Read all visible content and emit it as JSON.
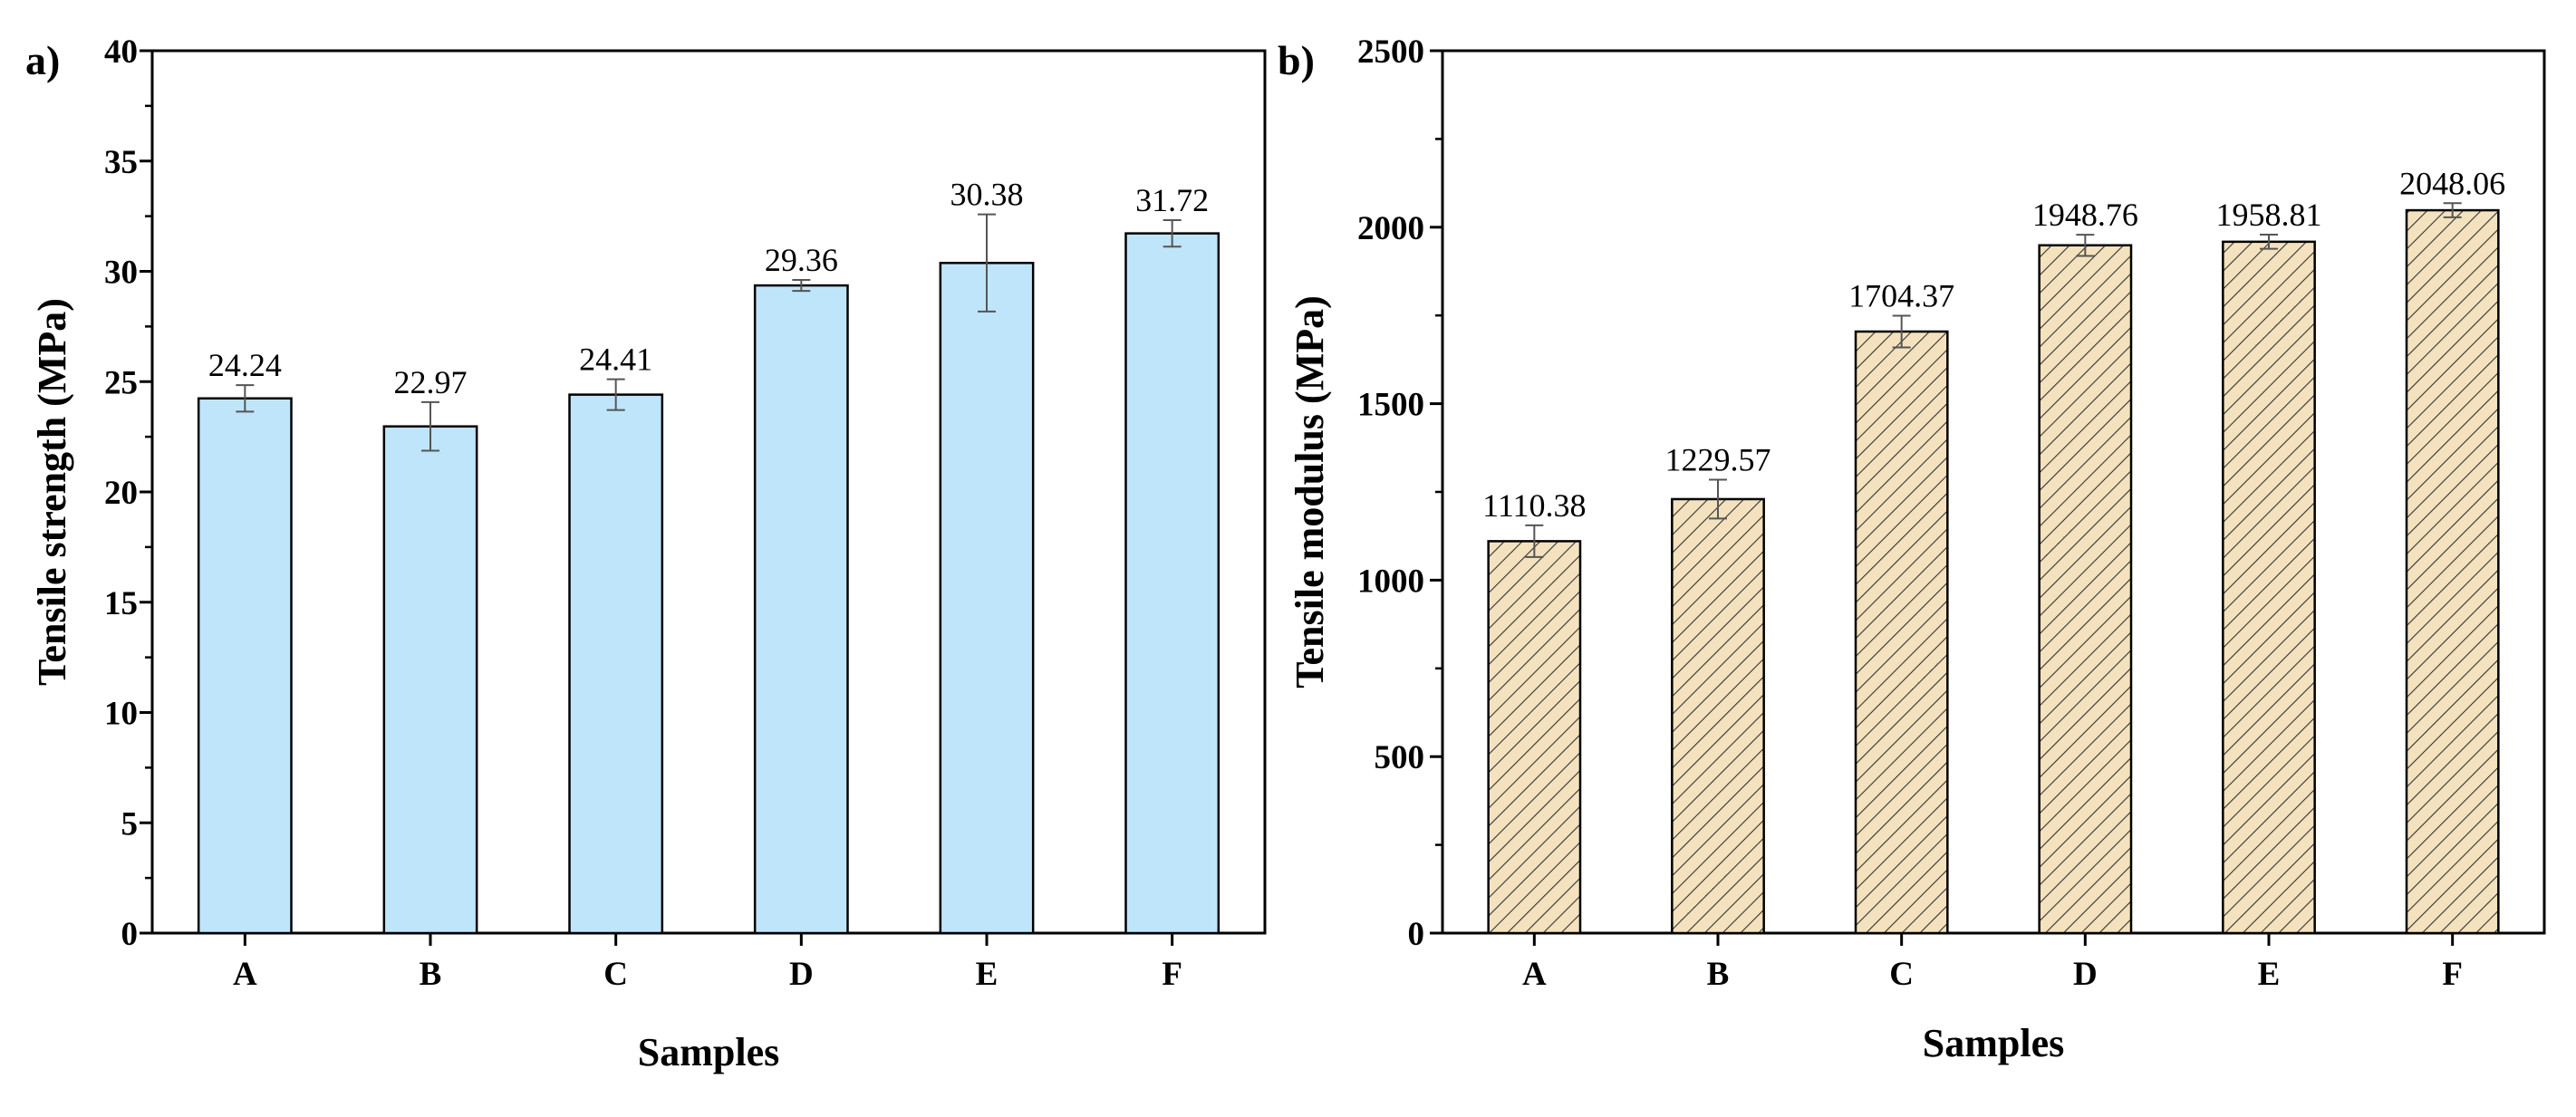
{
  "chart_data": [
    {
      "type": "bar",
      "panel_label": "a)",
      "categories": [
        "A",
        "B",
        "C",
        "D",
        "E",
        "F"
      ],
      "values": [
        24.24,
        22.97,
        24.41,
        29.36,
        30.38,
        31.72
      ],
      "value_labels": [
        "24.24",
        "22.97",
        "24.41",
        "29.36",
        "30.38",
        "31.72"
      ],
      "errors": [
        0.6,
        1.1,
        0.7,
        0.25,
        2.2,
        0.6
      ],
      "xlabel": "Samples",
      "ylabel": "Tensile strength (MPa)",
      "ylim": [
        0,
        40
      ],
      "yticks": [
        0,
        5,
        10,
        15,
        20,
        25,
        30,
        35,
        40
      ],
      "ytick_labels": [
        "0",
        "5",
        "10",
        "15",
        "20",
        "25",
        "30",
        "35",
        "40"
      ],
      "bar_color": "#bfe5fb",
      "fill_style": "solid",
      "grid": false
    },
    {
      "type": "bar",
      "panel_label": "b)",
      "categories": [
        "A",
        "B",
        "C",
        "D",
        "E",
        "F"
      ],
      "values": [
        1110.38,
        1229.57,
        1704.37,
        1948.76,
        1958.81,
        2048.06
      ],
      "value_labels": [
        "1110.38",
        "1229.57",
        "1704.37",
        "1948.76",
        "1958.81",
        "2048.06"
      ],
      "errors": [
        45,
        55,
        45,
        30,
        20,
        20
      ],
      "xlabel": "Samples",
      "ylabel": "Tensile modulus (MPa)",
      "ylim": [
        0,
        2500
      ],
      "yticks": [
        0,
        500,
        1000,
        1500,
        2000,
        2500
      ],
      "ytick_labels": [
        "0",
        "500",
        "1000",
        "1500",
        "2000",
        "2500"
      ],
      "bar_color": "#f3e2bd",
      "fill_style": "hatched",
      "grid": false
    }
  ]
}
